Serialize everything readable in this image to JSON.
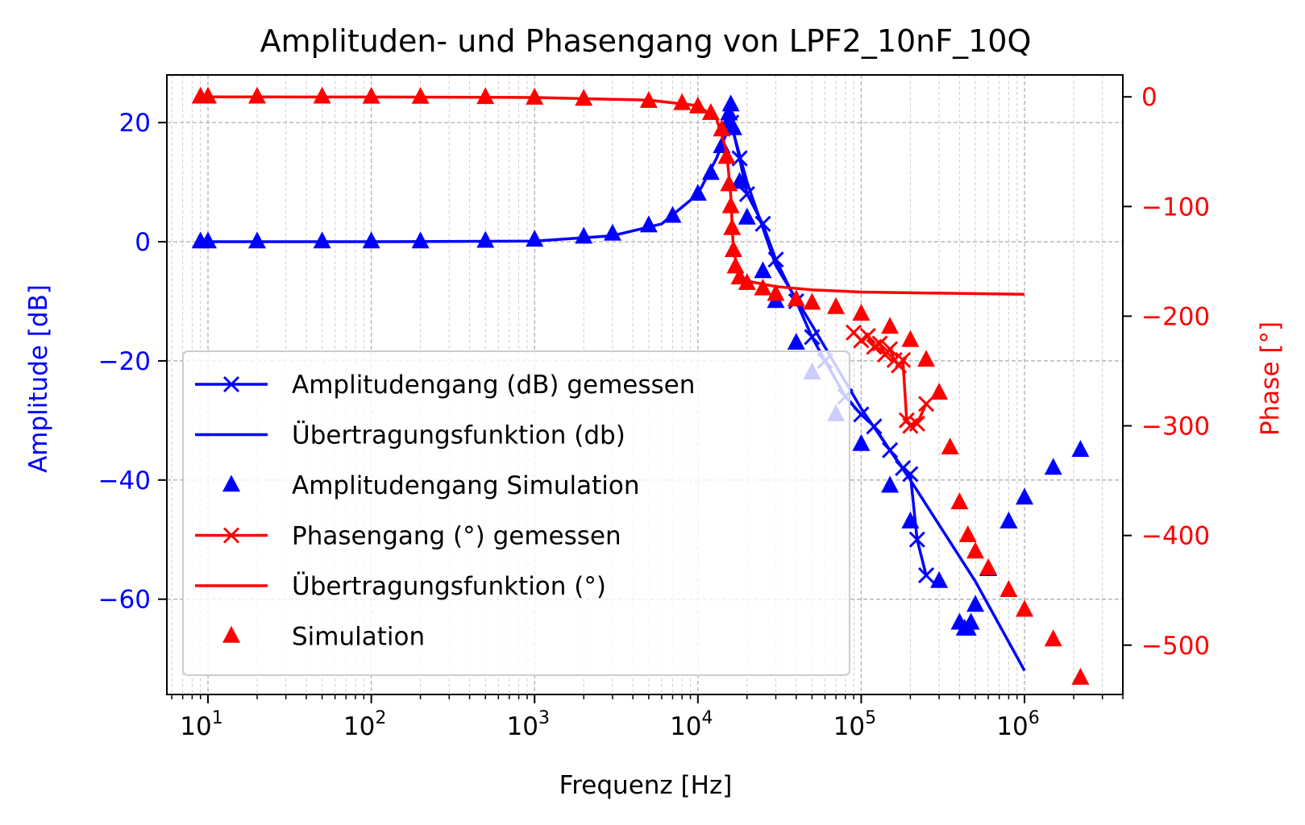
{
  "chart_data": {
    "type": "line",
    "title": "Amplituden- und Phasengang von LPF2_10nF_10Q",
    "xlabel": "Frequenz [Hz]",
    "ylabel_left": "Amplitude [dB]",
    "ylabel_right": "Phase [°]",
    "x_scale": "log",
    "xlim": [
      5.6,
      4000000
    ],
    "ylim_left": [
      -76,
      28
    ],
    "ylim_right": [
      -545,
      20
    ],
    "x_ticks": [
      10,
      100,
      1000,
      10000,
      100000,
      1000000
    ],
    "x_tick_labels": [
      "10",
      "10",
      "10",
      "10",
      "10",
      "10"
    ],
    "x_tick_exponents": [
      "1",
      "2",
      "3",
      "4",
      "5",
      "6"
    ],
    "y_ticks_left": [
      20,
      0,
      -20,
      -40,
      -60
    ],
    "y_tick_labels_left": [
      "20",
      "0",
      "−20",
      "−40",
      "−60"
    ],
    "y_ticks_right": [
      0,
      -100,
      -200,
      -300,
      -400,
      -500
    ],
    "y_tick_labels_right": [
      "0",
      "−100",
      "−200",
      "−300",
      "−400",
      "−500"
    ],
    "grid": true,
    "legend_position": "lower-left",
    "colors": {
      "amplitude": "#0000ff",
      "phase": "#ff0000",
      "axes": "#000000",
      "grid": "#b0b0b0"
    },
    "series": [
      {
        "name": "Amplitudengang (dB) gemessen",
        "axis": "left",
        "color": "#0000ff",
        "marker": "x",
        "line": true,
        "x": [
          16000,
          18000,
          20000,
          25000,
          30000,
          40000,
          50000,
          60000,
          80000,
          100000,
          120000,
          150000,
          180000,
          200000,
          220000,
          250000
        ],
        "y": [
          20,
          14,
          8,
          3,
          -3,
          -10,
          -16,
          -20,
          -26,
          -29,
          -31,
          -35,
          -38,
          -39,
          -50,
          -56
        ]
      },
      {
        "name": "Übertragungsfunktion (db)",
        "axis": "left",
        "color": "#0000ff",
        "marker": "none",
        "line": true,
        "x": [
          10,
          100,
          1000,
          3000,
          6000,
          10000,
          13000,
          15900,
          20000,
          30000,
          50000,
          100000,
          200000,
          500000,
          1000000
        ],
        "y": [
          0,
          0,
          0.1,
          1,
          3,
          8,
          14,
          20,
          10,
          -4,
          -14,
          -28,
          -40,
          -57,
          -72
        ]
      },
      {
        "name": "Amplitudengang Simulation",
        "axis": "left",
        "color": "#0000ff",
        "marker": "triangle",
        "line": false,
        "x": [
          9,
          10,
          20,
          50,
          100,
          200,
          500,
          1000,
          2000,
          3000,
          5000,
          7000,
          10000,
          12000,
          14000,
          15000,
          15500,
          15900,
          16500,
          18000,
          20000,
          25000,
          30000,
          40000,
          50000,
          70000,
          100000,
          150000,
          200000,
          300000,
          400000,
          430000,
          450000,
          470000,
          500000,
          600000,
          800000,
          1000000,
          1500000,
          2200000
        ],
        "y": [
          0,
          0,
          0,
          0,
          0,
          0,
          0.1,
          0.3,
          0.8,
          1.3,
          2.7,
          4.3,
          8,
          11.5,
          16,
          19.5,
          21.5,
          23,
          19,
          10,
          4,
          -5,
          -10,
          -17,
          -22,
          -29,
          -34,
          -41,
          -47,
          -57,
          -64,
          -65,
          -65,
          -64,
          -61,
          -55,
          -47,
          -43,
          -38,
          -35
        ]
      },
      {
        "name": "Phasengang (°) gemessen",
        "axis": "right",
        "color": "#ff0000",
        "marker": "x",
        "line": true,
        "x": [
          90000,
          100000,
          110000,
          120000,
          130000,
          140000,
          150000,
          160000,
          170000,
          180000,
          190000,
          200000,
          220000,
          250000
        ],
        "y": [
          -215,
          -222,
          -218,
          -228,
          -225,
          -235,
          -230,
          -240,
          -245,
          -240,
          -295,
          -300,
          -298,
          -280
        ]
      },
      {
        "name": "Übertragungsfunktion (°)",
        "axis": "right",
        "color": "#ff0000",
        "marker": "none",
        "line": true,
        "x": [
          10,
          100,
          1000,
          5000,
          10000,
          13000,
          15000,
          15900,
          16500,
          18000,
          20000,
          30000,
          50000,
          100000,
          300000,
          1000000
        ],
        "y": [
          0,
          -0.1,
          -0.6,
          -3,
          -8,
          -20,
          -50,
          -90,
          -140,
          -163,
          -168,
          -173,
          -176,
          -178,
          -179,
          -180
        ]
      },
      {
        "name": "Simulation",
        "axis": "right",
        "color": "#ff0000",
        "marker": "triangle",
        "line": false,
        "x": [
          9,
          10,
          20,
          50,
          100,
          200,
          500,
          1000,
          2000,
          5000,
          8000,
          10000,
          12000,
          14000,
          15000,
          15500,
          15900,
          16200,
          16500,
          17000,
          18000,
          20000,
          25000,
          30000,
          40000,
          50000,
          70000,
          100000,
          150000,
          200000,
          250000,
          300000,
          350000,
          400000,
          450000,
          500000,
          600000,
          800000,
          1000000,
          1500000,
          2200000
        ],
        "y": [
          0,
          0,
          0,
          0,
          -0.1,
          -0.2,
          -0.5,
          -1,
          -2,
          -4,
          -6,
          -9,
          -15,
          -30,
          -55,
          -80,
          -100,
          -120,
          -140,
          -155,
          -165,
          -170,
          -175,
          -180,
          -185,
          -188,
          -192,
          -198,
          -210,
          -222,
          -240,
          -270,
          -320,
          -370,
          -400,
          -415,
          -430,
          -450,
          -468,
          -495,
          -530
        ]
      }
    ]
  }
}
